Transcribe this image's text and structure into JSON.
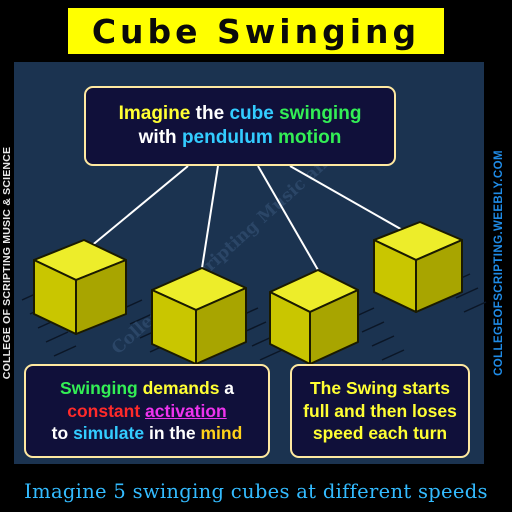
{
  "title": "Cube Swinging",
  "side_left_text": "COLLEGE OF SCRIPTING MUSIC & SCIENCE",
  "side_right_text": "COLLEGEOFSCRIPTING.WEEBLY.COM",
  "watermark": "College of Scripting Music and Science",
  "callout_top": {
    "line1_a": "Imagine",
    "line1_b": "the",
    "line1_c": "cube",
    "line1_d": "swinging",
    "line2_a": "with",
    "line2_b": "pendulum",
    "line2_c": "motion"
  },
  "callout_left": {
    "line1_a": "Swinging",
    "line1_b": "demands",
    "line1_c": "a",
    "line2_a": "constant",
    "line2_b": "activation",
    "line3_a": "to",
    "line3_b": "simulate",
    "line3_c": "in the",
    "line3_d": "mind"
  },
  "callout_right": {
    "line1": "The Swing starts",
    "line2": "full and then loses",
    "line3": "speed each turn"
  },
  "footer": "Imagine 5 swinging cubes at different speeds",
  "colors": {
    "title_bg": "#ffff00",
    "panel_bg": "#1b3350",
    "cube_face": "#c9c600",
    "cube_top": "#eded2a",
    "cube_side": "#8f8c00",
    "string": "#ffffff",
    "callout_bg": "#10103a",
    "callout_border": "#ffe9a0",
    "footer_text": "#33bbff",
    "url_text": "#1f8be6"
  }
}
